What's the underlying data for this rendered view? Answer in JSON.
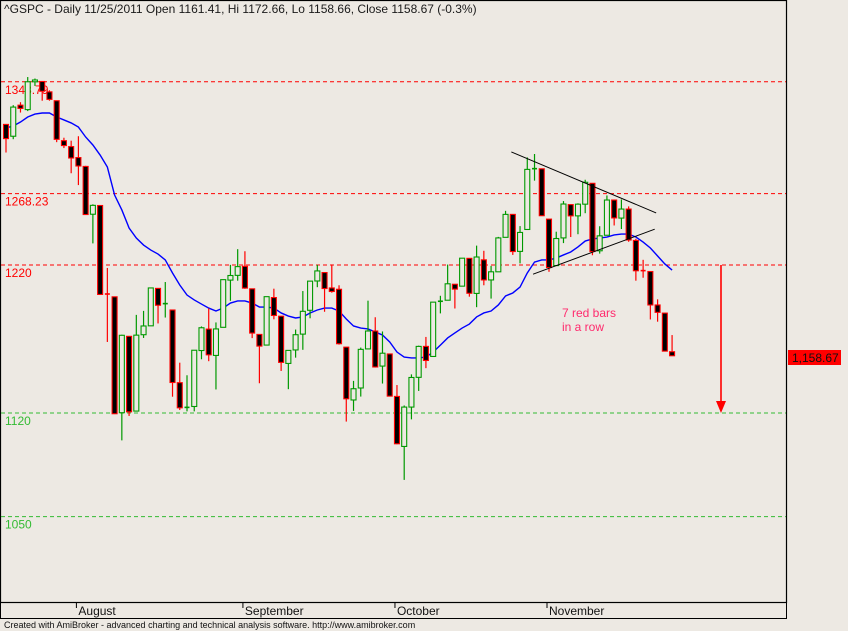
{
  "header": {
    "title": "^GSPC - Daily 11/25/2011 Open 1161.41, Hi 1172.66, Lo 1158.66, Close 1158.67 (-0.3%)"
  },
  "footer": {
    "text": "Created with AmiBroker - advanced charting and technical analysis software. http://www.amibroker.com"
  },
  "colors": {
    "background": "#ede9e3",
    "up": "#009900",
    "down_border": "#ff0000",
    "down_fill": "#000000",
    "ma": "#0000ff",
    "level_red": "#ff0000",
    "level_green": "#33bb33",
    "note": "#ff2a6d"
  },
  "chart_data": {
    "type": "candlestick",
    "symbol": "^GSPC",
    "period": "Daily",
    "ylim": [
      1030,
      1390
    ],
    "x_labels": [
      {
        "label": "August",
        "date": "8/1/2011"
      },
      {
        "label": "September",
        "date": "9/1/2011"
      },
      {
        "label": "October",
        "date": "10/3/2011"
      },
      {
        "label": "November",
        "date": "11/1/2011"
      }
    ],
    "bars_columns": [
      "date",
      "open",
      "high",
      "low",
      "close"
    ],
    "bars": [
      [
        "7/18/2011",
        1315.0,
        1315.0,
        1296.0,
        1305.4
      ],
      [
        "7/19/2011",
        1307.0,
        1328.0,
        1305.0,
        1326.7
      ],
      [
        "7/20/2011",
        1328.0,
        1330.0,
        1323.0,
        1325.8
      ],
      [
        "7/21/2011",
        1325.0,
        1347.0,
        1324.0,
        1343.8
      ],
      [
        "7/22/2011",
        1343.8,
        1346.0,
        1341.0,
        1345.0
      ],
      [
        "7/25/2011",
        1344.0,
        1344.0,
        1331.0,
        1337.4
      ],
      [
        "7/26/2011",
        1337.0,
        1338.0,
        1331.0,
        1331.9
      ],
      [
        "7/27/2011",
        1331.0,
        1331.0,
        1303.0,
        1304.9
      ],
      [
        "7/28/2011",
        1304.0,
        1306.0,
        1299.0,
        1300.7
      ],
      [
        "7/29/2011",
        1300.0,
        1304.0,
        1282.0,
        1292.3
      ],
      [
        "8/1/2011",
        1292.6,
        1307.0,
        1274.0,
        1286.9
      ],
      [
        "8/2/2011",
        1286.6,
        1287.0,
        1254.0,
        1254.1
      ],
      [
        "8/3/2011",
        1254.3,
        1261.0,
        1234.6,
        1260.3
      ],
      [
        "8/4/2011",
        1260.2,
        1260.2,
        1200.0,
        1200.1
      ],
      [
        "8/5/2011",
        1200.4,
        1218.0,
        1168.0,
        1199.4
      ],
      [
        "8/8/2011",
        1198.5,
        1198.5,
        1119.3,
        1119.5
      ],
      [
        "8/9/2011",
        1120.2,
        1172.9,
        1101.5,
        1172.5
      ],
      [
        "8/10/2011",
        1171.8,
        1171.8,
        1118.0,
        1120.8
      ],
      [
        "8/11/2011",
        1121.3,
        1186.3,
        1121.3,
        1172.6
      ],
      [
        "8/12/2011",
        1172.9,
        1189.0,
        1170.7,
        1178.8
      ],
      [
        "8/15/2011",
        1178.9,
        1204.5,
        1178.9,
        1204.5
      ],
      [
        "8/16/2011",
        1204.2,
        1204.2,
        1180.5,
        1192.8
      ],
      [
        "8/17/2011",
        1192.9,
        1208.5,
        1184.5,
        1193.9
      ],
      [
        "8/18/2011",
        1189.6,
        1189.6,
        1131.0,
        1140.6
      ],
      [
        "8/19/2011",
        1140.5,
        1154.0,
        1122.0,
        1123.5
      ],
      [
        "8/22/2011",
        1123.6,
        1145.5,
        1121.1,
        1123.8
      ],
      [
        "8/23/2011",
        1124.4,
        1162.4,
        1121.1,
        1162.4
      ],
      [
        "8/24/2011",
        1162.2,
        1178.5,
        1156.3,
        1177.6
      ],
      [
        "8/25/2011",
        1176.7,
        1190.7,
        1155.0,
        1159.3
      ],
      [
        "8/26/2011",
        1158.9,
        1181.2,
        1135.9,
        1176.8
      ],
      [
        "8/29/2011",
        1177.9,
        1210.1,
        1177.9,
        1210.1
      ],
      [
        "8/30/2011",
        1209.8,
        1220.1,
        1195.8,
        1212.9
      ],
      [
        "8/31/2011",
        1213.0,
        1230.7,
        1209.4,
        1218.9
      ],
      [
        "9/1/2011",
        1219.1,
        1229.3,
        1203.9,
        1204.4
      ],
      [
        "9/2/2011",
        1203.9,
        1203.9,
        1170.6,
        1174.0
      ],
      [
        "9/6/2011",
        1173.1,
        1173.1,
        1140.1,
        1165.2
      ],
      [
        "9/7/2011",
        1165.9,
        1198.6,
        1165.9,
        1198.6
      ],
      [
        "9/8/2011",
        1198.0,
        1204.0,
        1183.3,
        1185.9
      ],
      [
        "9/9/2011",
        1185.4,
        1185.4,
        1148.4,
        1154.2
      ],
      [
        "9/12/2011",
        1153.5,
        1162.5,
        1136.1,
        1162.3
      ],
      [
        "9/13/2011",
        1162.6,
        1176.4,
        1157.4,
        1172.9
      ],
      [
        "9/14/2011",
        1173.3,
        1202.4,
        1162.7,
        1188.7
      ],
      [
        "9/15/2011",
        1189.4,
        1209.1,
        1184.0,
        1209.1
      ],
      [
        "9/16/2011",
        1209.2,
        1220.1,
        1205.0,
        1216.0
      ],
      [
        "9/19/2011",
        1214.9,
        1215.0,
        1188.4,
        1204.1
      ],
      [
        "9/20/2011",
        1204.5,
        1220.4,
        1201.3,
        1202.1
      ],
      [
        "9/21/2011",
        1203.6,
        1206.3,
        1166.2,
        1166.8
      ],
      [
        "9/22/2011",
        1164.5,
        1164.5,
        1114.2,
        1129.6
      ],
      [
        "9/23/2011",
        1128.8,
        1141.7,
        1121.4,
        1136.4
      ],
      [
        "9/26/2011",
        1136.9,
        1164.2,
        1131.1,
        1163.0
      ],
      [
        "9/27/2011",
        1163.3,
        1195.9,
        1163.3,
        1175.4
      ],
      [
        "9/28/2011",
        1175.4,
        1184.7,
        1150.7,
        1151.1
      ],
      [
        "9/29/2011",
        1151.7,
        1175.1,
        1139.9,
        1160.4
      ],
      [
        "9/30/2011",
        1159.9,
        1159.9,
        1131.3,
        1131.4
      ],
      [
        "10/3/2011",
        1131.2,
        1138.9,
        1098.9,
        1099.2
      ],
      [
        "10/4/2011",
        1097.4,
        1125.1,
        1074.8,
        1124.0
      ],
      [
        "10/5/2011",
        1124.0,
        1146.1,
        1115.7,
        1144.0
      ],
      [
        "10/6/2011",
        1144.1,
        1165.5,
        1134.9,
        1165.0
      ],
      [
        "10/7/2011",
        1165.0,
        1171.4,
        1150.3,
        1155.5
      ],
      [
        "10/10/2011",
        1158.2,
        1194.9,
        1158.2,
        1194.9
      ],
      [
        "10/11/2011",
        1194.6,
        1199.2,
        1187.3,
        1195.5
      ],
      [
        "10/12/2011",
        1196.2,
        1220.3,
        1196.2,
        1207.3
      ],
      [
        "10/13/2011",
        1207.0,
        1207.0,
        1190.6,
        1203.7
      ],
      [
        "10/14/2011",
        1205.7,
        1224.6,
        1205.7,
        1224.6
      ],
      [
        "10/17/2011",
        1224.5,
        1224.6,
        1198.6,
        1200.9
      ],
      [
        "10/18/2011",
        1200.8,
        1233.1,
        1191.5,
        1225.4
      ],
      [
        "10/19/2011",
        1223.5,
        1229.6,
        1206.3,
        1209.9
      ],
      [
        "10/20/2011",
        1209.9,
        1219.4,
        1197.3,
        1215.4
      ],
      [
        "10/21/2011",
        1215.4,
        1239.0,
        1215.4,
        1238.3
      ],
      [
        "10/24/2011",
        1238.7,
        1256.6,
        1238.7,
        1254.2
      ],
      [
        "10/25/2011",
        1254.2,
        1254.2,
        1226.8,
        1229.1
      ],
      [
        "10/26/2011",
        1229.2,
        1246.3,
        1221.1,
        1242.0
      ],
      [
        "10/27/2011",
        1244.0,
        1292.7,
        1244.0,
        1284.6
      ],
      [
        "10/28/2011",
        1284.4,
        1295.0,
        1277.0,
        1285.1
      ],
      [
        "10/31/2011",
        1285.0,
        1285.0,
        1253.2,
        1253.3
      ],
      [
        "11/1/2011",
        1251.0,
        1251.0,
        1215.4,
        1218.3
      ],
      [
        "11/2/2011",
        1219.6,
        1242.5,
        1219.6,
        1237.9
      ],
      [
        "11/3/2011",
        1238.3,
        1263.2,
        1234.8,
        1261.2
      ],
      [
        "11/4/2011",
        1260.8,
        1260.8,
        1238.9,
        1253.2
      ],
      [
        "11/7/2011",
        1253.2,
        1261.7,
        1240.8,
        1261.1
      ],
      [
        "11/8/2011",
        1261.1,
        1277.6,
        1255.0,
        1275.9
      ],
      [
        "11/9/2011",
        1275.2,
        1275.2,
        1226.6,
        1229.1
      ],
      [
        "11/10/2011",
        1229.6,
        1246.2,
        1227.7,
        1239.7
      ],
      [
        "11/11/2011",
        1240.1,
        1267.0,
        1240.1,
        1263.9
      ],
      [
        "11/14/2011",
        1263.9,
        1263.9,
        1246.7,
        1251.8
      ],
      [
        "11/15/2011",
        1251.7,
        1264.3,
        1244.3,
        1257.8
      ],
      [
        "11/16/2011",
        1257.8,
        1259.6,
        1235.7,
        1236.9
      ],
      [
        "11/17/2011",
        1236.6,
        1237.7,
        1209.4,
        1216.1
      ],
      [
        "11/18/2011",
        1216.2,
        1223.5,
        1211.4,
        1215.7
      ],
      [
        "11/21/2011",
        1215.6,
        1215.6,
        1183.2,
        1193.0
      ],
      [
        "11/22/2011",
        1193.0,
        1196.8,
        1181.7,
        1188.0
      ],
      [
        "11/23/2011",
        1187.5,
        1187.5,
        1161.8,
        1161.8
      ],
      [
        "11/25/2011",
        1161.41,
        1172.66,
        1158.66,
        1158.67
      ]
    ],
    "moving_average": [
      1312.6,
      1313.9,
      1316.6,
      1320.0,
      1322.0,
      1322.7,
      1322.7,
      1320.0,
      1318.0,
      1316.0,
      1313.2,
      1306.5,
      1301.1,
      1294.3,
      1286.2,
      1267.3,
      1257.2,
      1245.0,
      1238.2,
      1233.5,
      1230.1,
      1227.4,
      1223.4,
      1214.6,
      1206.5,
      1199.7,
      1196.4,
      1193.6,
      1190.9,
      1188.9,
      1190.9,
      1194.3,
      1195.7,
      1195.7,
      1194.3,
      1191.6,
      1191.6,
      1190.9,
      1187.6,
      1185.5,
      1184.2,
      1184.9,
      1187.6,
      1189.6,
      1190.9,
      1190.9,
      1188.9,
      1183.5,
      1178.8,
      1177.4,
      1176.8,
      1174.7,
      1172.7,
      1168.0,
      1161.2,
      1157.8,
      1157.2,
      1157.2,
      1157.8,
      1161.2,
      1165.9,
      1170.7,
      1174.1,
      1177.4,
      1180.1,
      1184.9,
      1187.6,
      1188.9,
      1193.0,
      1199.1,
      1201.1,
      1205.1,
      1214.6,
      1222.0,
      1223.4,
      1223.4,
      1224.7,
      1226.8,
      1228.8,
      1232.2,
      1236.2,
      1237.6,
      1238.2,
      1238.9,
      1240.3,
      1240.9,
      1240.9,
      1238.9,
      1235.5,
      1231.5,
      1226.1,
      1220.7,
      1216.6
    ],
    "levels": [
      {
        "value": 1343.79,
        "label": "1343.79",
        "color": "#ff0000"
      },
      {
        "value": 1268.23,
        "label": "1268.23",
        "color": "#ff0000"
      },
      {
        "value": 1220,
        "label": "1220",
        "color": "#ff0000"
      },
      {
        "value": 1120,
        "label": "1120",
        "color": "#33bb33"
      },
      {
        "value": 1050,
        "label": "1050",
        "color": "#33bb33"
      }
    ],
    "trendlines": [
      {
        "from": [
          69.8,
          1296.4
        ],
        "to": [
          89.8,
          1255.2
        ],
        "color": "#000000"
      },
      {
        "from": [
          72.8,
          1213.8
        ],
        "to": [
          89.6,
          1244.2
        ],
        "color": "#000000"
      }
    ],
    "target_arrow": {
      "from": 1220,
      "to": 1120,
      "color": "#ff0000"
    },
    "annotation": {
      "lines": [
        "7 red bars",
        "in a row"
      ]
    },
    "last_price_label": "1,158.67"
  }
}
